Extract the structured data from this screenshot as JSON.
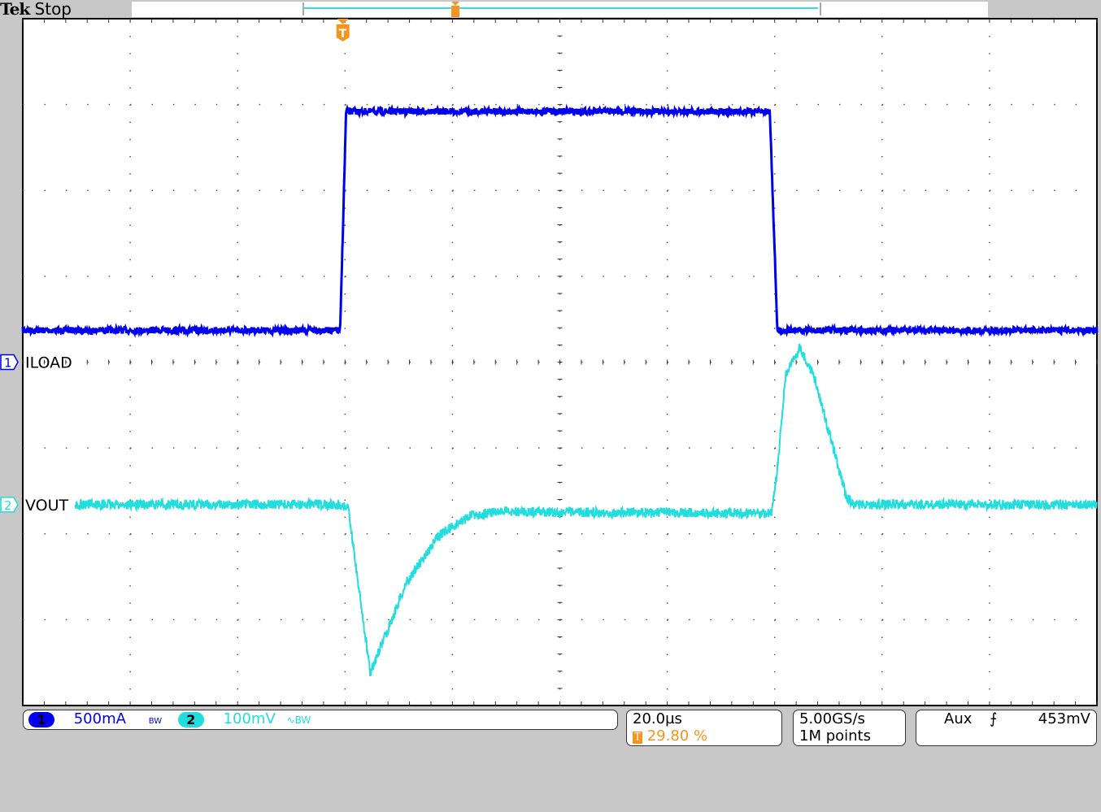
{
  "header": {
    "brand": "Tek",
    "status": "Stop"
  },
  "channels": [
    {
      "num": "1",
      "label": "ILOAD",
      "scale": "500mA",
      "bw": "BW",
      "color": "#0000ee"
    },
    {
      "num": "2",
      "label": "VOUT",
      "scale": "100mV",
      "bw": "∿BW",
      "color": "#22dddd"
    }
  ],
  "timebase": {
    "scale": "20.0µs",
    "trigger_pos": "29.80 %",
    "trigger_icon": "T"
  },
  "acquisition": {
    "rate": "5.00GS/s",
    "points": "1M points"
  },
  "trigger": {
    "source": "Aux",
    "slope_icon": "rising-edge-icon",
    "slope": "⨍",
    "level": "453mV"
  },
  "chart_data": {
    "type": "line",
    "x_unit": "µs",
    "grid": true,
    "divisions": {
      "x": 10,
      "y": 8
    },
    "xlim": [
      -59.6,
      140.4
    ],
    "series": [
      {
        "name": "ILOAD",
        "unit": "A",
        "per_div": 0.5,
        "offset_div": 0,
        "points": [
          [
            -59.6,
            0.185
          ],
          [
            -0.5,
            0.185
          ],
          [
            0.6,
            1.46
          ],
          [
            79.5,
            1.46
          ],
          [
            80.9,
            0.185
          ],
          [
            140.4,
            0.185
          ]
        ]
      },
      {
        "name": "VOUT",
        "unit": "mV",
        "per_div": 100,
        "offset_div": -1.66,
        "points": [
          [
            -49.8,
            0
          ],
          [
            -0.2,
            0
          ],
          [
            1,
            -5
          ],
          [
            5.1,
            -196
          ],
          [
            11.9,
            -90
          ],
          [
            18,
            -35
          ],
          [
            24,
            -12
          ],
          [
            30,
            -8
          ],
          [
            40.7,
            -9
          ],
          [
            79.8,
            -10
          ],
          [
            80.9,
            40
          ],
          [
            82.4,
            150
          ],
          [
            85.1,
            183
          ],
          [
            87.7,
            150
          ],
          [
            93.7,
            10
          ],
          [
            95.2,
            0
          ],
          [
            140.4,
            0
          ]
        ]
      }
    ]
  }
}
